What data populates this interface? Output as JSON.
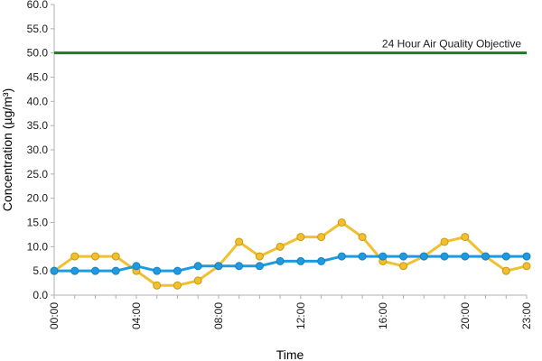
{
  "chart_data": {
    "type": "line",
    "title": "",
    "xlabel": "Time",
    "ylabel": "Concentration (µg/m³)",
    "ylim": [
      0,
      60
    ],
    "y_ticks": [
      "0.0",
      "5.0",
      "10.0",
      "15.0",
      "20.0",
      "25.0",
      "30.0",
      "35.0",
      "40.0",
      "45.0",
      "50.0",
      "55.0",
      "60.0"
    ],
    "x_tick_labels": [
      "00:00",
      "04:00",
      "08:00",
      "12:00",
      "16:00",
      "20:00",
      "23:00"
    ],
    "x_tick_hours": [
      0,
      4,
      8,
      12,
      16,
      20,
      23
    ],
    "x": [
      0,
      1,
      2,
      3,
      4,
      5,
      6,
      7,
      8,
      9,
      10,
      11,
      12,
      13,
      14,
      15,
      16,
      17,
      18,
      19,
      20,
      21,
      22,
      23
    ],
    "grid": false,
    "legend": "none",
    "series": [
      {
        "color": "#f0c030",
        "values": [
          5,
          8,
          8,
          8,
          5,
          2,
          2,
          3,
          6,
          11,
          8,
          10,
          12,
          12,
          15,
          12,
          7,
          6,
          8,
          11,
          12,
          8,
          5,
          6
        ]
      },
      {
        "color": "#1e9be0",
        "values": [
          5,
          5,
          5,
          5,
          6,
          5,
          5,
          6,
          6,
          6,
          6,
          7,
          7,
          7,
          8,
          8,
          8,
          8,
          8,
          8,
          8,
          8,
          8,
          8
        ]
      }
    ],
    "objective": {
      "label": "24 Hour Air Quality Objective",
      "value": 50,
      "color": "#1e7a1e"
    }
  }
}
